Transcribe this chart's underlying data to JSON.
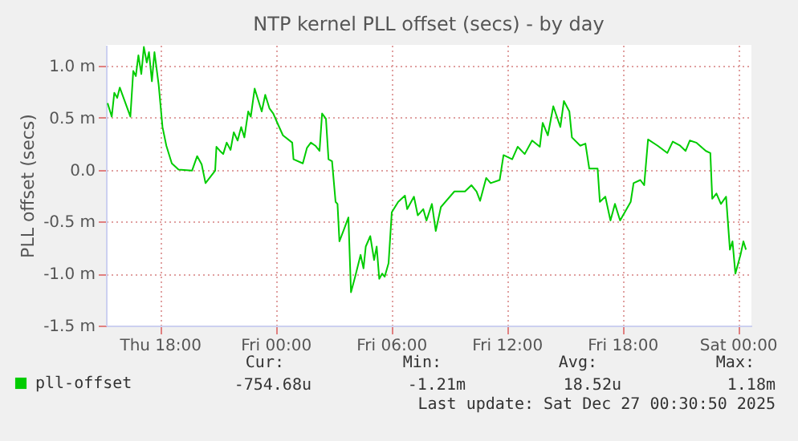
{
  "chart_data": {
    "type": "line",
    "title": "NTP kernel PLL offset (secs) - by day",
    "ylabel": "PLL offset (secs)",
    "x": [
      "2025-12-25T15:17",
      "2025-12-25T15:30",
      "2025-12-25T15:38",
      "2025-12-25T15:47",
      "2025-12-25T15:55",
      "2025-12-25T16:28",
      "2025-12-25T16:37",
      "2025-12-25T16:45",
      "2025-12-25T16:53",
      "2025-12-25T17:02",
      "2025-12-25T17:10",
      "2025-12-25T17:19",
      "2025-12-25T17:26",
      "2025-12-25T17:35",
      "2025-12-25T17:43",
      "2025-12-25T17:56",
      "2025-12-25T18:08",
      "2025-12-25T18:20",
      "2025-12-25T18:37",
      "2025-12-25T18:58",
      "2025-12-25T19:40",
      "2025-12-25T19:56",
      "2025-12-25T20:10",
      "2025-12-25T20:22",
      "2025-12-25T20:52",
      "2025-12-25T20:56",
      "2025-12-25T21:07",
      "2025-12-25T21:17",
      "2025-12-25T21:28",
      "2025-12-25T21:40",
      "2025-12-25T21:50",
      "2025-12-25T22:02",
      "2025-12-25T22:13",
      "2025-12-25T22:23",
      "2025-12-25T22:35",
      "2025-12-25T22:43",
      "2025-12-25T22:55",
      "2025-12-25T23:17",
      "2025-12-25T23:28",
      "2025-12-25T23:41",
      "2025-12-25T23:53",
      "2025-12-26T00:07",
      "2025-12-26T00:23",
      "2025-12-26T00:52",
      "2025-12-26T00:56",
      "2025-12-26T01:25",
      "2025-12-26T01:38",
      "2025-12-26T01:50",
      "2025-12-26T02:04",
      "2025-12-26T02:17",
      "2025-12-26T02:25",
      "2025-12-26T02:37",
      "2025-12-26T02:45",
      "2025-12-26T02:56",
      "2025-12-26T03:07",
      "2025-12-26T03:13",
      "2025-12-26T03:19",
      "2025-12-26T03:35",
      "2025-12-26T03:47",
      "2025-12-26T03:55",
      "2025-12-26T04:08",
      "2025-12-26T04:25",
      "2025-12-26T04:34",
      "2025-12-26T04:41",
      "2025-12-26T04:55",
      "2025-12-26T05:07",
      "2025-12-26T05:15",
      "2025-12-26T05:23",
      "2025-12-26T05:32",
      "2025-12-26T05:40",
      "2025-12-26T05:52",
      "2025-12-26T06:02",
      "2025-12-26T06:22",
      "2025-12-26T06:43",
      "2025-12-26T06:50",
      "2025-12-26T07:11",
      "2025-12-26T07:23",
      "2025-12-26T07:40",
      "2025-12-26T07:50",
      "2025-12-26T08:07",
      "2025-12-26T08:19",
      "2025-12-26T08:35",
      "2025-12-26T09:17",
      "2025-12-26T09:50",
      "2025-12-26T10:10",
      "2025-12-26T10:26",
      "2025-12-26T10:37",
      "2025-12-26T10:56",
      "2025-12-26T11:10",
      "2025-12-26T11:38",
      "2025-12-26T11:50",
      "2025-12-26T12:17",
      "2025-12-26T12:34",
      "2025-12-26T12:56",
      "2025-12-26T13:19",
      "2025-12-26T13:43",
      "2025-12-26T13:52",
      "2025-12-26T14:08",
      "2025-12-26T14:25",
      "2025-12-26T14:47",
      "2025-12-26T14:58",
      "2025-12-26T15:15",
      "2025-12-26T15:23",
      "2025-12-26T15:49",
      "2025-12-26T16:05",
      "2025-12-26T16:17",
      "2025-12-26T16:43",
      "2025-12-26T16:50",
      "2025-12-26T17:07",
      "2025-12-26T17:23",
      "2025-12-26T17:37",
      "2025-12-26T17:53",
      "2025-12-26T18:26",
      "2025-12-26T18:35",
      "2025-12-26T18:56",
      "2025-12-26T19:08",
      "2025-12-26T19:20",
      "2025-12-26T19:50",
      "2025-12-26T20:20",
      "2025-12-26T20:37",
      "2025-12-26T21:00",
      "2025-12-26T21:17",
      "2025-12-26T21:30",
      "2025-12-26T21:50",
      "2025-12-26T22:20",
      "2025-12-26T22:34",
      "2025-12-26T22:40",
      "2025-12-26T22:53",
      "2025-12-26T23:07",
      "2025-12-26T23:23",
      "2025-12-26T23:35",
      "2025-12-26T23:43",
      "2025-12-26T23:52",
      "2025-12-27T00:08",
      "2025-12-27T00:17",
      "2025-12-27T00:25"
    ],
    "series": [
      {
        "name": "pll-offset",
        "color": "#00cc00",
        "values": [
          0.64,
          0.51,
          0.74,
          0.69,
          0.79,
          0.51,
          0.95,
          0.9,
          1.1,
          0.92,
          1.18,
          1.03,
          1.13,
          0.85,
          1.13,
          0.82,
          0.41,
          0.23,
          0.06,
          0.0,
          -0.01,
          0.13,
          0.05,
          -0.13,
          -0.01,
          0.22,
          0.18,
          0.15,
          0.26,
          0.19,
          0.36,
          0.28,
          0.41,
          0.31,
          0.56,
          0.51,
          0.78,
          0.56,
          0.72,
          0.59,
          0.54,
          0.44,
          0.33,
          0.26,
          0.1,
          0.06,
          0.21,
          0.26,
          0.23,
          0.18,
          0.54,
          0.49,
          0.1,
          0.08,
          -0.31,
          -0.33,
          -0.69,
          -0.56,
          -0.46,
          -1.18,
          -1.03,
          -0.82,
          -0.95,
          -0.74,
          -0.64,
          -0.87,
          -0.74,
          -1.05,
          -1.0,
          -1.03,
          -0.9,
          -0.41,
          -0.31,
          -0.25,
          -0.38,
          -0.26,
          -0.44,
          -0.38,
          -0.49,
          -0.33,
          -0.59,
          -0.36,
          -0.21,
          -0.21,
          -0.15,
          -0.21,
          -0.3,
          -0.08,
          -0.13,
          -0.1,
          0.14,
          0.1,
          0.22,
          0.15,
          0.28,
          0.22,
          0.45,
          0.33,
          0.61,
          0.41,
          0.66,
          0.56,
          0.31,
          0.23,
          0.25,
          0.01,
          0.01,
          -0.31,
          -0.26,
          -0.49,
          -0.33,
          -0.49,
          -0.31,
          -0.13,
          -0.1,
          -0.15,
          0.29,
          0.23,
          0.16,
          0.27,
          0.23,
          0.18,
          0.28,
          0.26,
          0.18,
          0.16,
          -0.28,
          -0.23,
          -0.33,
          -0.26,
          -0.77,
          -0.69,
          -1.0,
          -0.82,
          -0.69,
          -0.77
        ]
      }
    ],
    "xlim": [
      "2025-12-25T15:12",
      "2025-12-27T00:42"
    ],
    "xticks": [
      {
        "value": "2025-12-25T18:00",
        "label": "Thu 18:00"
      },
      {
        "value": "2025-12-26T00:00",
        "label": "Fri 00:00"
      },
      {
        "value": "2025-12-26T06:00",
        "label": "Fri 06:00"
      },
      {
        "value": "2025-12-26T12:00",
        "label": "Fri 12:00"
      },
      {
        "value": "2025-12-26T18:00",
        "label": "Fri 18:00"
      },
      {
        "value": "2025-12-27T00:00",
        "label": "Sat 00:00"
      }
    ],
    "ylim": [
      -1.5,
      1.2
    ],
    "yticks": [
      {
        "value": -1.5,
        "label": "-1.5 m"
      },
      {
        "value": -1.0,
        "label": "-1.0 m"
      },
      {
        "value": -0.5,
        "label": "-0.5 m"
      },
      {
        "value": 0,
        "label": "0.0"
      },
      {
        "value": 0.5,
        "label": "0.5 m"
      },
      {
        "value": 1.0,
        "label": "1.0 m"
      }
    ],
    "grid": true,
    "legend": "bottom left",
    "line_style": "solid",
    "annotations": [
      "Cur:",
      "Min:",
      "Avg:",
      "Max:",
      "-754.68u",
      "-1.21m",
      "18.52u",
      "1.18m",
      "Last update: Sat Dec 27 00:30:50 2025"
    ]
  }
}
